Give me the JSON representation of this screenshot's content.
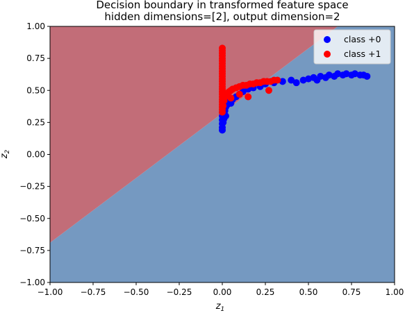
{
  "chart_data": {
    "type": "scatter",
    "title_lines": [
      "Decision boundary in transformed feature space",
      "hidden dimensions=[2], output dimension=2"
    ],
    "xlabel_base": "z",
    "xlabel_sub": "1",
    "ylabel_base": "z",
    "ylabel_sub": "2",
    "xlim": [
      -1.0,
      1.0
    ],
    "ylim": [
      -1.0,
      1.0
    ],
    "x_ticks": [
      -1.0,
      -0.75,
      -0.5,
      -0.25,
      0.0,
      0.25,
      0.5,
      0.75,
      1.0
    ],
    "y_ticks": [
      -1.0,
      -0.75,
      -0.5,
      -0.25,
      0.0,
      0.25,
      0.5,
      0.75,
      1.0
    ],
    "x_tick_labels": [
      "−1.00",
      "−0.75",
      "−0.50",
      "−0.25",
      "0.00",
      "0.25",
      "0.50",
      "0.75",
      "1.00"
    ],
    "y_tick_labels": [
      "−1.00",
      "−0.75",
      "−0.50",
      "−0.25",
      "0.00",
      "0.25",
      "0.50",
      "0.75",
      "1.00"
    ],
    "grid": false,
    "legend_position": "top-right",
    "decision_boundary": {
      "line": [
        [
          -1.0,
          -0.69
        ],
        [
          0.67,
          1.0
        ]
      ],
      "upper_region_color": "#c26d78",
      "lower_region_color": "#7599c1"
    },
    "series": [
      {
        "name": "class +0",
        "color": "#0000ff",
        "x": [
          0.0,
          0.0,
          0.0,
          0.0,
          0.0,
          0.0,
          0.005,
          0.01,
          0.01,
          0.015,
          0.02,
          0.02,
          0.03,
          0.04,
          0.05,
          0.06,
          0.08,
          0.1,
          0.12,
          0.15,
          0.18,
          0.22,
          0.25,
          0.3,
          0.35,
          0.4,
          0.43,
          0.47,
          0.5,
          0.53,
          0.55,
          0.57,
          0.6,
          0.62,
          0.65,
          0.67,
          0.7,
          0.72,
          0.75,
          0.77,
          0.8,
          0.82,
          0.84
        ],
        "y": [
          0.19,
          0.21,
          0.24,
          0.27,
          0.3,
          0.33,
          0.25,
          0.28,
          0.32,
          0.34,
          0.3,
          0.37,
          0.39,
          0.41,
          0.4,
          0.43,
          0.45,
          0.47,
          0.49,
          0.51,
          0.52,
          0.53,
          0.55,
          0.56,
          0.57,
          0.58,
          0.56,
          0.58,
          0.59,
          0.6,
          0.58,
          0.61,
          0.6,
          0.62,
          0.61,
          0.63,
          0.62,
          0.63,
          0.62,
          0.63,
          0.62,
          0.62,
          0.61
        ]
      },
      {
        "name": "class +1",
        "color": "#ff0000",
        "x": [
          0.0,
          0.0,
          0.0,
          0.0,
          0.0,
          0.0,
          0.0,
          0.0,
          0.0,
          0.0,
          0.0,
          0.0,
          0.0,
          0.0,
          0.0,
          0.0,
          0.0,
          0.0,
          0.0,
          0.0,
          0.0,
          0.0,
          0.0,
          0.0,
          0.0,
          0.0,
          0.005,
          0.01,
          0.015,
          0.02,
          0.03,
          0.04,
          0.05,
          0.06,
          0.08,
          0.1,
          0.12,
          0.14,
          0.16,
          0.18,
          0.2,
          0.22,
          0.24,
          0.26,
          0.28,
          0.3,
          0.32,
          0.05,
          0.1,
          0.15,
          0.27
        ],
        "y": [
          0.83,
          0.81,
          0.79,
          0.77,
          0.75,
          0.73,
          0.71,
          0.69,
          0.67,
          0.65,
          0.63,
          0.61,
          0.59,
          0.57,
          0.55,
          0.53,
          0.51,
          0.49,
          0.47,
          0.45,
          0.43,
          0.41,
          0.39,
          0.37,
          0.35,
          0.33,
          0.38,
          0.42,
          0.45,
          0.47,
          0.48,
          0.49,
          0.5,
          0.51,
          0.52,
          0.53,
          0.54,
          0.54,
          0.55,
          0.55,
          0.56,
          0.56,
          0.57,
          0.57,
          0.57,
          0.58,
          0.58,
          0.44,
          0.47,
          0.45,
          0.5
        ]
      }
    ]
  }
}
